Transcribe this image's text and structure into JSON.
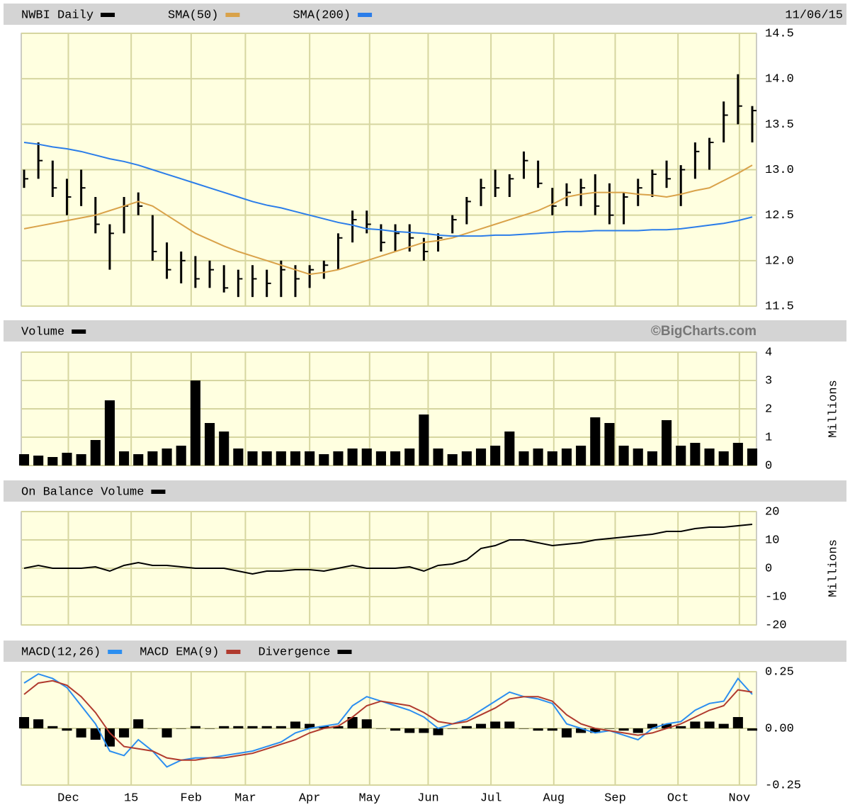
{
  "chart_data": [
    {
      "type": "ohlc",
      "date": "11/06/15",
      "ylim": [
        11.5,
        14.5
      ],
      "yticks": [
        {
          "value": 14.5,
          "label": "14.5"
        },
        {
          "value": 14,
          "label": "14.0"
        },
        {
          "value": 13.5,
          "label": "13.5"
        },
        {
          "value": 13,
          "label": "13.0"
        },
        {
          "value": 12.5,
          "label": "12.5"
        },
        {
          "value": 12,
          "label": "12.0"
        },
        {
          "value": 11.5,
          "label": "11.5"
        }
      ],
      "grid": true,
      "series": [
        {
          "name": "NWBI Daily",
          "color": "#000000",
          "high": [
            13.0,
            13.3,
            13.1,
            12.9,
            13.0,
            12.7,
            12.4,
            12.7,
            12.75,
            12.5,
            12.2,
            12.1,
            12.05,
            12.0,
            11.95,
            11.9,
            11.95,
            11.9,
            12.0,
            11.95,
            11.95,
            12.0,
            12.3,
            12.55,
            12.55,
            12.4,
            12.4,
            12.4,
            12.25,
            12.3,
            12.5,
            12.7,
            12.9,
            13.0,
            12.95,
            13.2,
            13.1,
            12.8,
            12.85,
            12.9,
            12.95,
            12.85,
            12.75,
            12.9,
            13.0,
            13.1,
            13.05,
            13.3,
            13.35,
            13.75,
            14.05,
            13.7
          ],
          "low": [
            12.8,
            12.9,
            12.7,
            12.5,
            12.6,
            12.3,
            11.9,
            12.3,
            12.5,
            12.0,
            11.8,
            11.75,
            11.7,
            11.7,
            11.65,
            11.6,
            11.6,
            11.6,
            11.6,
            11.6,
            11.7,
            11.8,
            11.9,
            12.2,
            12.3,
            12.1,
            12.1,
            12.1,
            12.0,
            12.1,
            12.3,
            12.4,
            12.6,
            12.7,
            12.7,
            12.9,
            12.8,
            12.5,
            12.6,
            12.6,
            12.5,
            12.4,
            12.4,
            12.6,
            12.7,
            12.8,
            12.6,
            12.9,
            13.0,
            13.3,
            13.5,
            13.3
          ],
          "close": [
            12.9,
            13.1,
            12.8,
            12.7,
            12.8,
            12.4,
            12.3,
            12.6,
            12.6,
            12.1,
            11.9,
            12.0,
            11.8,
            11.9,
            11.7,
            11.8,
            11.8,
            11.75,
            11.9,
            11.8,
            11.9,
            11.95,
            12.25,
            12.45,
            12.4,
            12.2,
            12.3,
            12.25,
            12.1,
            12.25,
            12.45,
            12.65,
            12.8,
            12.8,
            12.9,
            13.1,
            12.85,
            12.6,
            12.75,
            12.8,
            12.6,
            12.5,
            12.7,
            12.8,
            12.95,
            12.9,
            13.0,
            13.2,
            13.3,
            13.6,
            13.7,
            13.65
          ]
        },
        {
          "name": "SMA(50)",
          "color": "#d9a24a",
          "values": [
            12.35,
            12.38,
            12.41,
            12.44,
            12.47,
            12.5,
            12.55,
            12.6,
            12.65,
            12.6,
            12.5,
            12.4,
            12.3,
            12.23,
            12.16,
            12.1,
            12.05,
            12.0,
            11.95,
            11.9,
            11.85,
            11.87,
            11.9,
            11.95,
            12.0,
            12.05,
            12.1,
            12.15,
            12.2,
            12.22,
            12.25,
            12.3,
            12.35,
            12.4,
            12.45,
            12.5,
            12.55,
            12.62,
            12.7,
            12.73,
            12.75,
            12.75,
            12.75,
            12.73,
            12.72,
            12.7,
            12.73,
            12.77,
            12.8,
            12.88,
            12.96,
            13.05
          ]
        },
        {
          "name": "SMA(200)",
          "color": "#2b7de9",
          "values": [
            13.3,
            13.28,
            13.25,
            13.23,
            13.2,
            13.16,
            13.12,
            13.09,
            13.05,
            13.0,
            12.95,
            12.9,
            12.85,
            12.8,
            12.75,
            12.7,
            12.65,
            12.61,
            12.58,
            12.54,
            12.5,
            12.46,
            12.42,
            12.39,
            12.35,
            12.34,
            12.32,
            12.31,
            12.3,
            12.28,
            12.27,
            12.27,
            12.27,
            12.28,
            12.28,
            12.29,
            12.3,
            12.31,
            12.32,
            12.32,
            12.33,
            12.33,
            12.33,
            12.33,
            12.34,
            12.34,
            12.35,
            12.37,
            12.39,
            12.41,
            12.44,
            12.48
          ]
        }
      ]
    },
    {
      "type": "bar",
      "credit": "©BigCharts.com",
      "y_label": "Millions",
      "ylim": [
        0,
        4
      ],
      "yticks": [
        4,
        3,
        2,
        1,
        0
      ],
      "grid": true,
      "series": [
        {
          "name": "Volume",
          "color": "#000000",
          "values": [
            0.4,
            0.35,
            0.3,
            0.45,
            0.4,
            0.9,
            2.3,
            0.5,
            0.4,
            0.5,
            0.6,
            0.7,
            3.0,
            1.5,
            1.2,
            0.6,
            0.5,
            0.5,
            0.5,
            0.5,
            0.5,
            0.4,
            0.5,
            0.6,
            0.6,
            0.5,
            0.5,
            0.6,
            1.8,
            0.6,
            0.4,
            0.5,
            0.6,
            0.7,
            1.2,
            0.5,
            0.6,
            0.5,
            0.6,
            0.7,
            1.7,
            1.5,
            0.7,
            0.6,
            0.5,
            1.6,
            0.7,
            0.8,
            0.6,
            0.5,
            0.8,
            0.6
          ]
        }
      ]
    },
    {
      "type": "line",
      "y_label": "Millions",
      "ylim": [
        -20,
        20
      ],
      "yticks": [
        20,
        10,
        0,
        -10,
        -20
      ],
      "grid": true,
      "series": [
        {
          "name": "On Balance Volume",
          "color": "#000000",
          "values": [
            0,
            1,
            0,
            0,
            0,
            0.5,
            -1,
            1,
            2,
            1,
            1,
            0.5,
            0,
            0,
            0,
            -1,
            -2,
            -1,
            -1,
            -0.5,
            -0.5,
            -1,
            0,
            1,
            0,
            0,
            0,
            0.5,
            -1,
            1,
            1.5,
            3,
            7,
            8,
            10,
            10,
            9,
            8,
            8.5,
            9,
            10,
            10.5,
            11,
            11.5,
            12,
            13,
            13,
            14,
            14.5,
            14.5,
            15,
            15.5
          ]
        }
      ]
    },
    {
      "type": "macd",
      "ylim": [
        -0.25,
        0.25
      ],
      "yticks": [
        {
          "value": 0.25,
          "label": "0.25"
        },
        {
          "value": 0,
          "label": "0.00"
        },
        {
          "value": -0.25,
          "label": "-0.25"
        }
      ],
      "grid": true,
      "xlim": [
        0,
        51
      ],
      "xticks": [
        {
          "value": 3.1,
          "label": "Dec"
        },
        {
          "value": 7.5,
          "label": "15"
        },
        {
          "value": 11.7,
          "label": "Feb"
        },
        {
          "value": 15.5,
          "label": "Mar"
        },
        {
          "value": 20,
          "label": "Apr"
        },
        {
          "value": 24.2,
          "label": "May"
        },
        {
          "value": 28.3,
          "label": "Jun"
        },
        {
          "value": 32.7,
          "label": "Jul"
        },
        {
          "value": 37.1,
          "label": "Aug"
        },
        {
          "value": 41.4,
          "label": "Sep"
        },
        {
          "value": 45.8,
          "label": "Oct"
        },
        {
          "value": 50.1,
          "label": "Nov"
        }
      ],
      "series": [
        {
          "name": "MACD(12,26)",
          "color": "#2b8ef0",
          "type": "line",
          "values": [
            0.2,
            0.24,
            0.22,
            0.18,
            0.1,
            0.02,
            -0.1,
            -0.12,
            -0.05,
            -0.1,
            -0.17,
            -0.14,
            -0.13,
            -0.13,
            -0.12,
            -0.11,
            -0.1,
            -0.08,
            -0.06,
            -0.02,
            0.0,
            0.01,
            0.02,
            0.1,
            0.14,
            0.12,
            0.1,
            0.08,
            0.05,
            0.0,
            0.02,
            0.04,
            0.08,
            0.12,
            0.16,
            0.14,
            0.13,
            0.11,
            0.02,
            0.0,
            -0.02,
            -0.01,
            -0.03,
            -0.05,
            0.0,
            0.02,
            0.03,
            0.08,
            0.11,
            0.12,
            0.22,
            0.15
          ]
        },
        {
          "name": "MACD EMA(9)",
          "color": "#b03a2e",
          "type": "line",
          "values": [
            0.15,
            0.2,
            0.21,
            0.19,
            0.14,
            0.07,
            -0.02,
            -0.08,
            -0.09,
            -0.1,
            -0.13,
            -0.14,
            -0.14,
            -0.13,
            -0.13,
            -0.12,
            -0.11,
            -0.09,
            -0.07,
            -0.05,
            -0.02,
            0.0,
            0.01,
            0.05,
            0.1,
            0.12,
            0.11,
            0.1,
            0.07,
            0.03,
            0.02,
            0.03,
            0.06,
            0.09,
            0.13,
            0.14,
            0.14,
            0.12,
            0.06,
            0.02,
            0.0,
            -0.01,
            -0.02,
            -0.03,
            -0.02,
            0.0,
            0.02,
            0.05,
            0.08,
            0.1,
            0.17,
            0.16
          ]
        },
        {
          "name": "Divergence",
          "color": "#000000",
          "type": "bar",
          "values": [
            0.05,
            0.04,
            0.01,
            -0.01,
            -0.04,
            -0.05,
            -0.08,
            -0.04,
            0.04,
            0.0,
            -0.04,
            0.0,
            0.01,
            0.0,
            0.01,
            0.01,
            0.01,
            0.01,
            0.01,
            0.03,
            0.02,
            0.01,
            0.01,
            0.05,
            0.04,
            0.0,
            -0.01,
            -0.02,
            -0.02,
            -0.03,
            0.0,
            0.01,
            0.02,
            0.03,
            0.03,
            0.0,
            -0.01,
            -0.01,
            -0.04,
            -0.02,
            -0.02,
            0.0,
            -0.01,
            -0.02,
            0.02,
            0.02,
            0.01,
            0.03,
            0.03,
            0.02,
            0.05,
            -0.01
          ]
        }
      ]
    }
  ]
}
